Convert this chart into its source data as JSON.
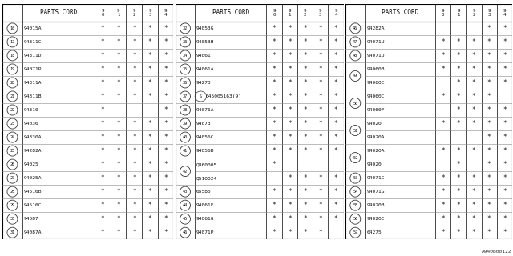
{
  "bg_color": "#ffffff",
  "border_color": "#555555",
  "text_color": "#111111",
  "col_headers": [
    "9\n0",
    "9\n1",
    "9\n2",
    "9\n3",
    "9\n4"
  ],
  "panel1": {
    "rows": [
      {
        "num": "16",
        "code": "94015A",
        "marks": [
          1,
          1,
          1,
          1,
          1
        ],
        "double": false
      },
      {
        "num": "17",
        "code": "94311C",
        "marks": [
          1,
          1,
          1,
          1,
          1
        ],
        "double": false
      },
      {
        "num": "18",
        "code": "94311D",
        "marks": [
          1,
          1,
          1,
          1,
          1
        ],
        "double": false
      },
      {
        "num": "19",
        "code": "94071P",
        "marks": [
          1,
          1,
          1,
          1,
          1
        ],
        "double": false
      },
      {
        "num": "20",
        "code": "94311A",
        "marks": [
          1,
          1,
          1,
          1,
          1
        ],
        "double": false
      },
      {
        "num": "21",
        "code": "94311B",
        "marks": [
          1,
          1,
          1,
          1,
          1
        ],
        "double": false
      },
      {
        "num": "22",
        "code": "94310",
        "marks": [
          1,
          0,
          0,
          0,
          1
        ],
        "double": false
      },
      {
        "num": "23",
        "code": "94036",
        "marks": [
          1,
          1,
          1,
          1,
          1
        ],
        "double": false
      },
      {
        "num": "24",
        "code": "94330A",
        "marks": [
          1,
          1,
          1,
          1,
          1
        ],
        "double": false
      },
      {
        "num": "25",
        "code": "94282A",
        "marks": [
          1,
          1,
          1,
          1,
          1
        ],
        "double": false
      },
      {
        "num": "26",
        "code": "94025",
        "marks": [
          1,
          1,
          1,
          1,
          1
        ],
        "double": false
      },
      {
        "num": "27",
        "code": "94025A",
        "marks": [
          1,
          1,
          1,
          1,
          1
        ],
        "double": false
      },
      {
        "num": "28",
        "code": "94516B",
        "marks": [
          1,
          1,
          1,
          1,
          1
        ],
        "double": false
      },
      {
        "num": "29",
        "code": "94516C",
        "marks": [
          1,
          1,
          1,
          1,
          1
        ],
        "double": false
      },
      {
        "num": "30",
        "code": "94087",
        "marks": [
          1,
          1,
          1,
          1,
          1
        ],
        "double": false
      },
      {
        "num": "31",
        "code": "94087A",
        "marks": [
          1,
          1,
          1,
          1,
          1
        ],
        "double": false
      }
    ]
  },
  "panel2": {
    "rows": [
      {
        "num": "32",
        "code": "94053G",
        "marks": [
          1,
          1,
          1,
          1,
          1
        ],
        "double": false,
        "sub": false
      },
      {
        "num": "33",
        "code": "94053H",
        "marks": [
          1,
          1,
          1,
          1,
          1
        ],
        "double": false,
        "sub": false
      },
      {
        "num": "34",
        "code": "94061",
        "marks": [
          1,
          1,
          1,
          1,
          1
        ],
        "double": false,
        "sub": false
      },
      {
        "num": "35",
        "code": "94061A",
        "marks": [
          1,
          1,
          1,
          1,
          1
        ],
        "double": false,
        "sub": false
      },
      {
        "num": "36",
        "code": "94273",
        "marks": [
          1,
          1,
          1,
          1,
          1
        ],
        "double": false,
        "sub": false
      },
      {
        "num": "37",
        "code": "045005163(9)",
        "marks": [
          1,
          1,
          1,
          1,
          1
        ],
        "double": false,
        "sub": true
      },
      {
        "num": "38",
        "code": "94076A",
        "marks": [
          1,
          1,
          1,
          1,
          1
        ],
        "double": false,
        "sub": false
      },
      {
        "num": "39",
        "code": "94073",
        "marks": [
          1,
          1,
          1,
          1,
          1
        ],
        "double": false,
        "sub": false
      },
      {
        "num": "40",
        "code": "94056C",
        "marks": [
          1,
          1,
          1,
          1,
          1
        ],
        "double": false,
        "sub": false
      },
      {
        "num": "41",
        "code": "94056B",
        "marks": [
          1,
          1,
          1,
          1,
          1
        ],
        "double": false,
        "sub": false
      },
      {
        "num": "42",
        "code": "Q860005",
        "marks": [
          1,
          0,
          0,
          0,
          0
        ],
        "double": true,
        "sub": false,
        "code2": "Q510024",
        "marks2": [
          0,
          1,
          1,
          1,
          1
        ]
      },
      {
        "num": "43",
        "code": "65585",
        "marks": [
          1,
          1,
          1,
          1,
          1
        ],
        "double": false,
        "sub": false
      },
      {
        "num": "44",
        "code": "94061F",
        "marks": [
          1,
          1,
          1,
          1,
          1
        ],
        "double": false,
        "sub": false
      },
      {
        "num": "45",
        "code": "94061G",
        "marks": [
          1,
          1,
          1,
          1,
          1
        ],
        "double": false,
        "sub": false
      },
      {
        "num": "46",
        "code": "94071P",
        "marks": [
          1,
          1,
          1,
          1,
          0
        ],
        "double": false,
        "sub": false
      }
    ]
  },
  "panel3": {
    "rows": [
      {
        "num": "46",
        "code": "94282A",
        "marks": [
          0,
          0,
          0,
          1,
          1
        ],
        "double": false
      },
      {
        "num": "47",
        "code": "94071U",
        "marks": [
          1,
          1,
          1,
          1,
          1
        ],
        "double": false
      },
      {
        "num": "48",
        "code": "94071U",
        "marks": [
          1,
          1,
          1,
          1,
          1
        ],
        "double": false
      },
      {
        "num": "49",
        "code": "94060B",
        "marks": [
          1,
          1,
          1,
          1,
          1
        ],
        "double": true,
        "code2": "94060E",
        "marks2": [
          0,
          1,
          1,
          1,
          1
        ]
      },
      {
        "num": "50",
        "code": "94060C",
        "marks": [
          1,
          1,
          1,
          1,
          0
        ],
        "double": true,
        "code2": "94060F",
        "marks2": [
          0,
          1,
          1,
          1,
          1
        ]
      },
      {
        "num": "51",
        "code": "94020",
        "marks": [
          1,
          1,
          1,
          1,
          1
        ],
        "double": true,
        "code2": "94020A",
        "marks2": [
          0,
          0,
          0,
          1,
          1
        ]
      },
      {
        "num": "52",
        "code": "94020A",
        "marks": [
          1,
          1,
          1,
          1,
          1
        ],
        "double": true,
        "code2": "94020",
        "marks2": [
          0,
          1,
          0,
          1,
          1
        ]
      },
      {
        "num": "53",
        "code": "94071C",
        "marks": [
          1,
          1,
          1,
          1,
          1
        ],
        "double": false
      },
      {
        "num": "54",
        "code": "94071G",
        "marks": [
          1,
          1,
          1,
          1,
          1
        ],
        "double": false
      },
      {
        "num": "55",
        "code": "94020B",
        "marks": [
          1,
          1,
          1,
          1,
          1
        ],
        "double": false
      },
      {
        "num": "56",
        "code": "94020C",
        "marks": [
          1,
          1,
          1,
          1,
          1
        ],
        "double": false
      },
      {
        "num": "57",
        "code": "64275",
        "marks": [
          1,
          1,
          1,
          1,
          1
        ],
        "double": false
      }
    ]
  },
  "footnote": "A940B00122"
}
